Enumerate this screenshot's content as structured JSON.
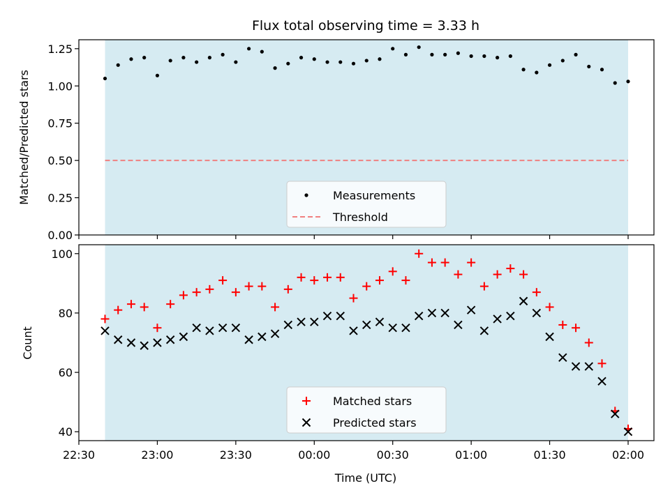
{
  "chart_data": [
    {
      "type": "scatter",
      "title": "Flux total observing time = 3.33 h",
      "xlabel": "",
      "ylabel": "Matched/Predicted stars",
      "ylim": [
        0,
        1.31
      ],
      "yticks": [
        "0.00",
        "0.25",
        "0.50",
        "0.75",
        "1.00",
        "1.25"
      ],
      "shaded_region": {
        "x_start": "22:40",
        "x_end": "02:00",
        "color": "#add8e6"
      },
      "threshold": {
        "name": "Threshold",
        "value": 0.5,
        "color": "#f08080"
      },
      "series": [
        {
          "name": "Measurements",
          "color": "#000000",
          "x": [
            "22:40",
            "22:45",
            "22:50",
            "22:55",
            "23:00",
            "23:05",
            "23:10",
            "23:15",
            "23:20",
            "23:25",
            "23:30",
            "23:35",
            "23:40",
            "23:45",
            "23:50",
            "23:55",
            "00:00",
            "00:05",
            "00:10",
            "00:15",
            "00:20",
            "00:25",
            "00:30",
            "00:35",
            "00:40",
            "00:45",
            "00:50",
            "00:55",
            "01:00",
            "01:05",
            "01:10",
            "01:15",
            "01:20",
            "01:25",
            "01:30",
            "01:35",
            "01:40",
            "01:45",
            "01:50",
            "01:55",
            "02:00"
          ],
          "values": [
            1.05,
            1.14,
            1.18,
            1.19,
            1.07,
            1.17,
            1.19,
            1.16,
            1.19,
            1.21,
            1.16,
            1.25,
            1.23,
            1.12,
            1.15,
            1.19,
            1.18,
            1.16,
            1.16,
            1.15,
            1.17,
            1.18,
            1.25,
            1.21,
            1.26,
            1.21,
            1.21,
            1.22,
            1.2,
            1.2,
            1.19,
            1.2,
            1.11,
            1.09,
            1.14,
            1.17,
            1.21,
            1.13,
            1.11,
            1.02,
            1.03
          ]
        }
      ],
      "legend": {
        "position": "lower-center",
        "entries": [
          "Measurements",
          "Threshold"
        ]
      }
    },
    {
      "type": "scatter",
      "title": "",
      "xlabel": "Time (UTC)",
      "ylabel": "Count",
      "ylim": [
        37,
        103
      ],
      "yticks": [
        "40",
        "60",
        "80",
        "100"
      ],
      "xticks": [
        "22:30",
        "23:00",
        "23:30",
        "00:00",
        "00:30",
        "01:00",
        "01:30",
        "02:00"
      ],
      "shaded_region": {
        "x_start": "22:40",
        "x_end": "02:00",
        "color": "#add8e6"
      },
      "series": [
        {
          "name": "Matched stars",
          "color": "#ff0000",
          "marker": "plus",
          "x": [
            "22:40",
            "22:45",
            "22:50",
            "22:55",
            "23:00",
            "23:05",
            "23:10",
            "23:15",
            "23:20",
            "23:25",
            "23:30",
            "23:35",
            "23:40",
            "23:45",
            "23:50",
            "23:55",
            "00:00",
            "00:05",
            "00:10",
            "00:15",
            "00:20",
            "00:25",
            "00:30",
            "00:35",
            "00:40",
            "00:45",
            "00:50",
            "00:55",
            "01:00",
            "01:05",
            "01:10",
            "01:15",
            "01:20",
            "01:25",
            "01:30",
            "01:35",
            "01:40",
            "01:45",
            "01:50",
            "01:55",
            "02:00"
          ],
          "values": [
            78,
            81,
            83,
            82,
            75,
            83,
            86,
            87,
            88,
            91,
            87,
            89,
            89,
            82,
            88,
            92,
            91,
            92,
            92,
            85,
            89,
            91,
            94,
            91,
            100,
            97,
            97,
            93,
            97,
            89,
            93,
            95,
            93,
            87,
            82,
            76,
            75,
            70,
            63,
            47,
            41
          ]
        },
        {
          "name": "Predicted stars",
          "color": "#000000",
          "marker": "x",
          "x": [
            "22:40",
            "22:45",
            "22:50",
            "22:55",
            "23:00",
            "23:05",
            "23:10",
            "23:15",
            "23:20",
            "23:25",
            "23:30",
            "23:35",
            "23:40",
            "23:45",
            "23:50",
            "23:55",
            "00:00",
            "00:05",
            "00:10",
            "00:15",
            "00:20",
            "00:25",
            "00:30",
            "00:35",
            "00:40",
            "00:45",
            "00:50",
            "00:55",
            "01:00",
            "01:05",
            "01:10",
            "01:15",
            "01:20",
            "01:25",
            "01:30",
            "01:35",
            "01:40",
            "01:45",
            "01:50",
            "01:55",
            "02:00"
          ],
          "values": [
            74,
            71,
            70,
            69,
            70,
            71,
            72,
            75,
            74,
            75,
            75,
            71,
            72,
            73,
            76,
            77,
            77,
            79,
            79,
            74,
            76,
            77,
            75,
            75,
            79,
            80,
            80,
            76,
            81,
            74,
            78,
            79,
            84,
            80,
            72,
            65,
            62,
            62,
            57,
            46,
            40
          ]
        }
      ],
      "legend": {
        "position": "lower-center",
        "entries": [
          "Matched stars",
          "Predicted stars"
        ]
      }
    }
  ]
}
